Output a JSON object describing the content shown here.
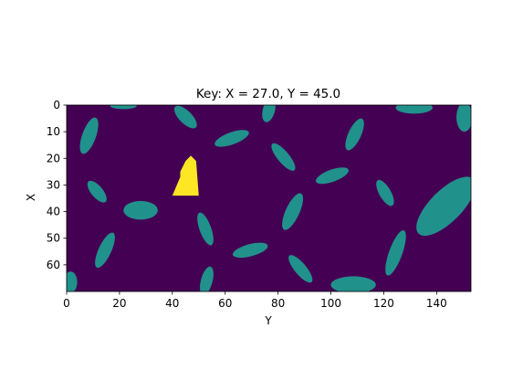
{
  "chart_data": {
    "type": "heatmap",
    "title": "Key: X = 27.0, Y = 45.0",
    "xlabel": "Y",
    "ylabel": "X",
    "xlim": [
      0,
      153
    ],
    "ylim": [
      70,
      0
    ],
    "xticks": [
      0,
      20,
      40,
      60,
      80,
      100,
      120,
      140
    ],
    "yticks": [
      0,
      10,
      20,
      30,
      40,
      50,
      60
    ],
    "grid": false,
    "legend": "none",
    "colors": {
      "background": "#440154",
      "obstacle": "#21918c",
      "key": "#fde725"
    },
    "obstacles": [
      {
        "cx": 8.5,
        "cy": 11.5,
        "rx": 2.6,
        "ry": 7.2,
        "angle": 20
      },
      {
        "cx": 21.5,
        "cy": 0.3,
        "rx": 5.0,
        "ry": 1.2,
        "angle": 0
      },
      {
        "cx": 45.0,
        "cy": 4.5,
        "rx": 2.4,
        "ry": 5.5,
        "angle": -45
      },
      {
        "cx": 76.5,
        "cy": 2.0,
        "rx": 2.3,
        "ry": 4.5,
        "angle": 15
      },
      {
        "cx": 62.5,
        "cy": 12.5,
        "rx": 2.3,
        "ry": 6.8,
        "angle": 70
      },
      {
        "cx": 82.0,
        "cy": 19.5,
        "rx": 2.2,
        "ry": 6.5,
        "angle": -40
      },
      {
        "cx": 109.0,
        "cy": 11.0,
        "rx": 2.4,
        "ry": 6.5,
        "angle": 25
      },
      {
        "cx": 131.5,
        "cy": 1.0,
        "rx": 7.0,
        "ry": 2.2,
        "angle": 0
      },
      {
        "cx": 150.5,
        "cy": 4.5,
        "rx": 3.0,
        "ry": 5.5,
        "angle": 0
      },
      {
        "cx": 11.5,
        "cy": 32.5,
        "rx": 2.2,
        "ry": 5.0,
        "angle": -40
      },
      {
        "cx": 28.0,
        "cy": 39.5,
        "rx": 6.5,
        "ry": 3.5,
        "angle": 0
      },
      {
        "cx": 100.5,
        "cy": 26.5,
        "rx": 2.3,
        "ry": 6.5,
        "angle": 70
      },
      {
        "cx": 120.5,
        "cy": 33.0,
        "rx": 2.2,
        "ry": 5.5,
        "angle": -30
      },
      {
        "cx": 85.5,
        "cy": 40.0,
        "rx": 2.6,
        "ry": 7.5,
        "angle": 25
      },
      {
        "cx": 52.5,
        "cy": 46.5,
        "rx": 2.2,
        "ry": 6.5,
        "angle": -20
      },
      {
        "cx": 143.5,
        "cy": 38.0,
        "rx": 6.0,
        "ry": 14.5,
        "angle": 45
      },
      {
        "cx": 14.5,
        "cy": 54.5,
        "rx": 2.4,
        "ry": 7.2,
        "angle": 25
      },
      {
        "cx": 69.5,
        "cy": 54.5,
        "rx": 2.3,
        "ry": 6.8,
        "angle": 75
      },
      {
        "cx": 124.5,
        "cy": 55.5,
        "rx": 2.5,
        "ry": 9.0,
        "angle": 20
      },
      {
        "cx": 88.5,
        "cy": 61.5,
        "rx": 2.2,
        "ry": 6.5,
        "angle": -40
      },
      {
        "cx": 53.0,
        "cy": 66.0,
        "rx": 2.2,
        "ry": 5.5,
        "angle": 15
      },
      {
        "cx": 108.5,
        "cy": 67.5,
        "rx": 8.5,
        "ry": 3.2,
        "angle": 0
      },
      {
        "cx": 1.5,
        "cy": 66.5,
        "rx": 2.5,
        "ry": 4.0,
        "angle": 0
      }
    ],
    "key": [
      [
        40,
        34
      ],
      [
        50,
        34
      ],
      [
        49,
        21
      ],
      [
        47,
        19
      ],
      [
        45,
        21
      ],
      [
        43,
        25
      ],
      [
        43,
        27
      ]
    ]
  }
}
